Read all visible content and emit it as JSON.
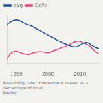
{
  "chart_data": {
    "type": "line",
    "x": [
      1987,
      1988,
      1989,
      1990,
      1991,
      1992,
      1993,
      1994,
      1995,
      1996,
      1997,
      1998,
      1999,
      2000,
      2001,
      2002,
      2003,
      2004,
      2005,
      2006,
      2007,
      2008,
      2009,
      2010,
      2011,
      2012,
      2013,
      2014,
      2015,
      2016
    ],
    "series": [
      {
        "name": "avg",
        "color": "#1a4f9c",
        "values": [
          76,
          80,
          83,
          84,
          83,
          80,
          77,
          75,
          73,
          70,
          67,
          64,
          61,
          58,
          55,
          52,
          49,
          47,
          44,
          42,
          40,
          38,
          38,
          41,
          44,
          46,
          44,
          40,
          37,
          35
        ]
      },
      {
        "name": "Eq%",
        "color": "#e8457a",
        "values": [
          18,
          26,
          30,
          31,
          29,
          27,
          26,
          25,
          28,
          29,
          30,
          30,
          29,
          28,
          30,
          32,
          34,
          36,
          38,
          40,
          43,
          46,
          48,
          48,
          45,
          43,
          40,
          35,
          30,
          26
        ]
      }
    ],
    "xlim": [
      1987,
      2016
    ],
    "xticks": [
      1990,
      2000,
      2010
    ],
    "ylim": [
      10,
      92
    ],
    "yticks": [],
    "grid": false,
    "legend": "upper left",
    "tick_labels": "x",
    "annotations": [
      "Availability rate: independent leases as a percentage of total ...",
      "Source"
    ]
  }
}
